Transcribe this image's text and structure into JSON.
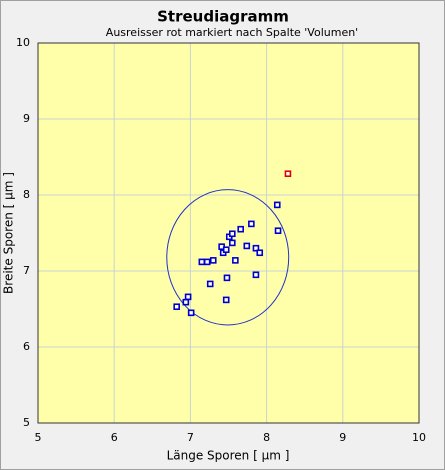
{
  "chart_data": {
    "type": "scatter",
    "title": "Streudiagramm",
    "subtitle": "Ausreisser rot markiert nach Spalte 'Volumen'",
    "x_label": "Länge Sporen [ µm ]",
    "y_label": "Breite Sporen [ µm ]",
    "xlim": [
      5,
      10
    ],
    "ylim": [
      5,
      10
    ],
    "xticks": [
      5,
      6,
      7,
      8,
      9,
      10
    ],
    "yticks": [
      5,
      6,
      7,
      8,
      9,
      10
    ],
    "grid": true,
    "series": [
      {
        "color": "#0000cc",
        "x": [
          6.82,
          6.94,
          6.97,
          7.01,
          7.15,
          7.22,
          7.3,
          7.26,
          7.41,
          7.43,
          7.47,
          7.47,
          7.48,
          7.51,
          7.55,
          7.55,
          7.59,
          7.66,
          7.74,
          7.8,
          7.86,
          7.86,
          7.91,
          8.14,
          8.15
        ],
        "y": [
          6.53,
          6.59,
          6.66,
          6.45,
          7.12,
          7.12,
          7.14,
          6.83,
          7.32,
          7.24,
          7.28,
          6.62,
          6.91,
          7.45,
          7.49,
          7.37,
          7.14,
          7.55,
          7.33,
          7.62,
          7.3,
          6.95,
          7.24,
          7.87,
          7.53
        ]
      },
      {
        "color": "#dd0000",
        "x": [
          8.28
        ],
        "y": [
          8.28
        ]
      }
    ],
    "ellipse": {
      "cx": 7.49,
      "cy": 7.18,
      "rx": 0.8,
      "ry": 0.89,
      "color": "#2233cc"
    }
  }
}
